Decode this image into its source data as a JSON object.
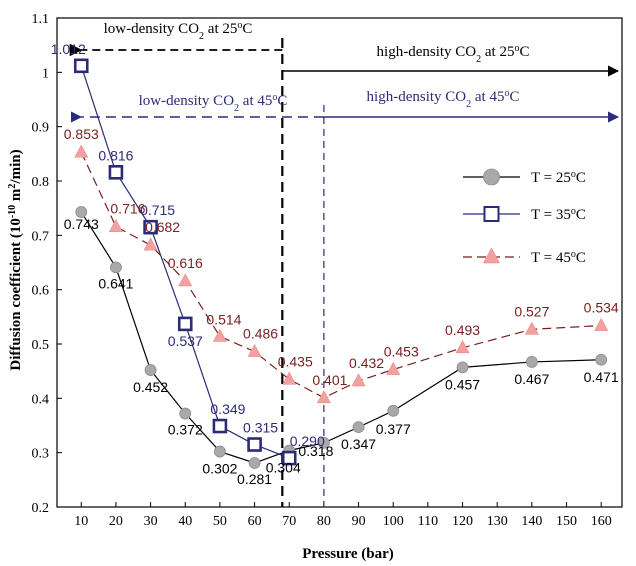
{
  "chart_data": {
    "type": "line",
    "xlabel": "Pressure (bar)",
    "ylabel_main": "Diffusion coefficient (10",
    "ylabel_exp": "-10",
    "ylabel_unit": " m",
    "ylabel_unit_exp": "2",
    "ylabel_end": "/min)",
    "xlim": [
      3,
      166
    ],
    "ylim": [
      0.2,
      1.1
    ],
    "xticks": [
      10,
      20,
      30,
      40,
      50,
      60,
      70,
      80,
      90,
      100,
      110,
      120,
      130,
      140,
      150,
      160
    ],
    "yticks": [
      0.2,
      0.3,
      0.4,
      0.5,
      0.6,
      0.7,
      0.8,
      0.9,
      1.0,
      1.1
    ],
    "ytick_labels": [
      "0.2",
      "0.3",
      "0.4",
      "0.5",
      "0.6",
      "0.7",
      "0.8",
      "0.9",
      "1",
      "1.1"
    ],
    "series": [
      {
        "name": "T = 25",
        "name_sup": "o",
        "name_end": "C",
        "color": "#a9a9a9",
        "line_color": "#000000",
        "marker": "circle",
        "dash": false,
        "x": [
          10,
          20,
          30,
          40,
          50,
          60,
          70,
          80,
          90,
          100,
          120,
          140,
          160
        ],
        "y": [
          0.743,
          0.641,
          0.452,
          0.372,
          0.302,
          0.281,
          0.304,
          0.318,
          0.347,
          0.377,
          0.457,
          0.467,
          0.471
        ],
        "labels": [
          "0.743",
          "0.641",
          "0.452",
          "0.372",
          "0.302",
          "0.281",
          "0.304",
          "0.318",
          "0.347",
          "0.377",
          "0.457",
          "0.467",
          "0.471"
        ],
        "label_color": "#000000"
      },
      {
        "name": "T = 35",
        "name_sup": "o",
        "name_end": "C",
        "color": "#2b2b7a",
        "line_color": "#2b2b7a",
        "marker": "square",
        "dash": false,
        "x": [
          10,
          20,
          30,
          40,
          50,
          60,
          70
        ],
        "y": [
          1.012,
          0.816,
          0.715,
          0.537,
          0.349,
          0.315,
          0.29
        ],
        "labels": [
          "1.012",
          "0.816",
          "0.715",
          "0.537",
          "0.349",
          "0.315",
          "0.290"
        ],
        "label_color": "#2b2b7a"
      },
      {
        "name": "T = 45",
        "name_sup": "o",
        "name_end": "C",
        "color": "#f2a0a0",
        "line_color": "#7a1e1e",
        "marker": "triangle",
        "dash": true,
        "x": [
          10,
          20,
          30,
          40,
          50,
          60,
          70,
          80,
          90,
          100,
          120,
          140,
          160
        ],
        "y": [
          0.853,
          0.716,
          0.682,
          0.616,
          0.514,
          0.486,
          0.435,
          0.401,
          0.432,
          0.453,
          0.493,
          0.527,
          0.534
        ],
        "labels": [
          "0.853",
          "0.716",
          "0.682",
          "0.616",
          "0.514",
          "0.486",
          "0.435",
          "0.401",
          "0.432",
          "0.453",
          "0.493",
          "0.527",
          "0.534"
        ],
        "label_color": "#7a1e1e"
      }
    ],
    "annotations": {
      "low25": {
        "pre": "low-density CO",
        "sub": "2",
        "mid": " at 25",
        "sup": "o",
        "end": "C",
        "color": "#000000"
      },
      "high25": {
        "pre": "high-density CO",
        "sub": "2",
        "mid": " at 25",
        "sup": "o",
        "end": "C",
        "color": "#000000"
      },
      "low45": {
        "pre": "low-density CO",
        "sub": "2",
        "mid": " at 45",
        "sup": "o",
        "end": "C",
        "color": "#2b2b7a"
      },
      "high45": {
        "pre": "high-density CO",
        "sub": "2",
        "mid": " at 45",
        "sup": "o",
        "end": "C",
        "color": "#2b2b7a"
      }
    },
    "boundaries": [
      {
        "x": 68,
        "color": "#000000"
      },
      {
        "x": 80,
        "color": "#2b2b7a"
      }
    ],
    "legend_position": "right"
  }
}
